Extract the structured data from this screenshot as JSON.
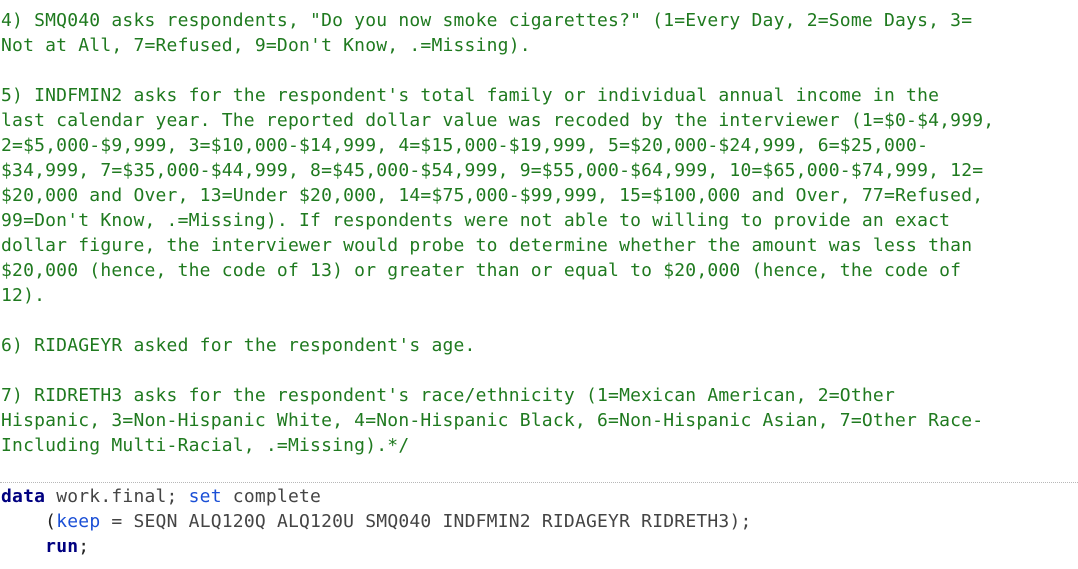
{
  "comment_lines": [
    "4) SMQ040 asks respondents, \"Do you now smoke cigarettes?\" (1=Every Day, 2=Some Days, 3=",
    "Not at All, 7=Refused, 9=Don't Know, .=Missing).",
    "",
    "5) INDFMIN2 asks for the respondent's total family or individual annual income in the",
    "last calendar year. The reported dollar value was recoded by the interviewer (1=$0-$4,999,",
    "2=$5,000-$9,999, 3=$10,000-$14,999, 4=$15,000-$19,999, 5=$20,000-$24,999, 6=$25,000-",
    "$34,999, 7=$35,000-$44,999, 8=$45,000-$54,999, 9=$55,000-$64,999, 10=$65,000-$74,999, 12=",
    "$20,000 and Over, 13=Under $20,000, 14=$75,000-$99,999, 15=$100,000 and Over, 77=Refused,",
    "99=Don't Know, .=Missing). If respondents were not able to willing to provide an exact",
    "dollar figure, the interviewer would probe to determine whether the amount was less than",
    "$20,000 (hence, the code of 13) or greater than or equal to $20,000 (hence, the code of",
    "12).",
    "",
    "6) RIDAGEYR asked for the respondent's age.",
    "",
    "7) RIDRETH3 asks for the respondent's race/ethnicity (1=Mexican American, 2=Other",
    "Hispanic, 3=Non-Hispanic White, 4=Non-Hispanic Black, 6=Non-Hispanic Asian, 7=Other Race-",
    "Including Multi-Racial, .=Missing).*/"
  ],
  "code": {
    "line1": {
      "kw_data": "data",
      "dataset": " work.final; ",
      "kw_set": "set",
      "source": " complete"
    },
    "line2": {
      "indent": "    ",
      "open_paren": "(",
      "kw_keep": "keep",
      "vars": " = SEQN ALQ120Q ALQ120U SMQ040 INDFMIN2 RIDAGEYR RIDRETH3);"
    },
    "line3": {
      "indent": "    ",
      "kw_run": "run",
      "semicolon": ";"
    }
  },
  "colors": {
    "comment": "#1f7a1f",
    "keyword": "#000080",
    "keyword_secondary": "#1a4fd6",
    "plain_text": "#444444",
    "background": "#ffffff"
  }
}
